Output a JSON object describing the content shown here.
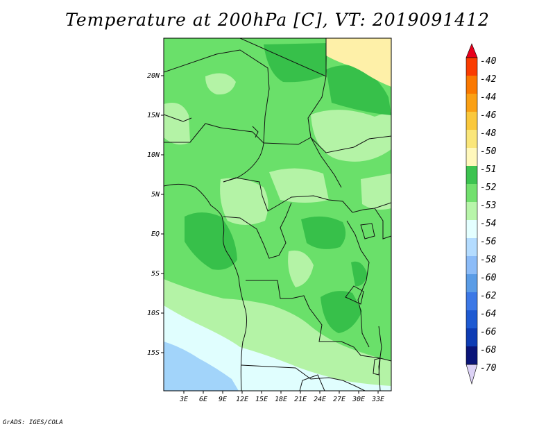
{
  "title": "Temperature at 200hPa [C], VT: 2019091412",
  "credit": "GrADS: IGES/COLA",
  "map": {
    "variable": "Temperature",
    "level": "200hPa",
    "units": "C",
    "valid_time": "2019091412",
    "lat_labels": [
      "20N",
      "15N",
      "10N",
      "5N",
      "EQ",
      "5S",
      "10S",
      "15S"
    ],
    "lon_labels": [
      "3E",
      "6E",
      "9E",
      "12E",
      "15E",
      "18E",
      "21E",
      "24E",
      "27E",
      "30E",
      "33E"
    ],
    "fill_colors": {
      "t_51": "#fef0a8",
      "t_52": "#37c04a",
      "t_53": "#6ae06a",
      "t_54": "#b4f3a6",
      "t_56": "#e0fefe",
      "t_58": "#a2d4fa"
    },
    "border_color": "#111111"
  },
  "colorbar": {
    "levels": [
      "-40",
      "-42",
      "-44",
      "-46",
      "-48",
      "-50",
      "-51",
      "-52",
      "-53",
      "-54",
      "-56",
      "-58",
      "-60",
      "-62",
      "-64",
      "-66",
      "-68",
      "-70"
    ],
    "colors": [
      "#e8001c",
      "#fa3c00",
      "#fa7800",
      "#faa014",
      "#fac83c",
      "#fae67a",
      "#fff8bc",
      "#3cc350",
      "#72e06e",
      "#b8f5aa",
      "#e4ffff",
      "#b4dcff",
      "#8cbcf8",
      "#5a9ce6",
      "#3c78e6",
      "#1e5ad2",
      "#0e3cb4",
      "#0a1478",
      "#dcd2f6"
    ]
  }
}
